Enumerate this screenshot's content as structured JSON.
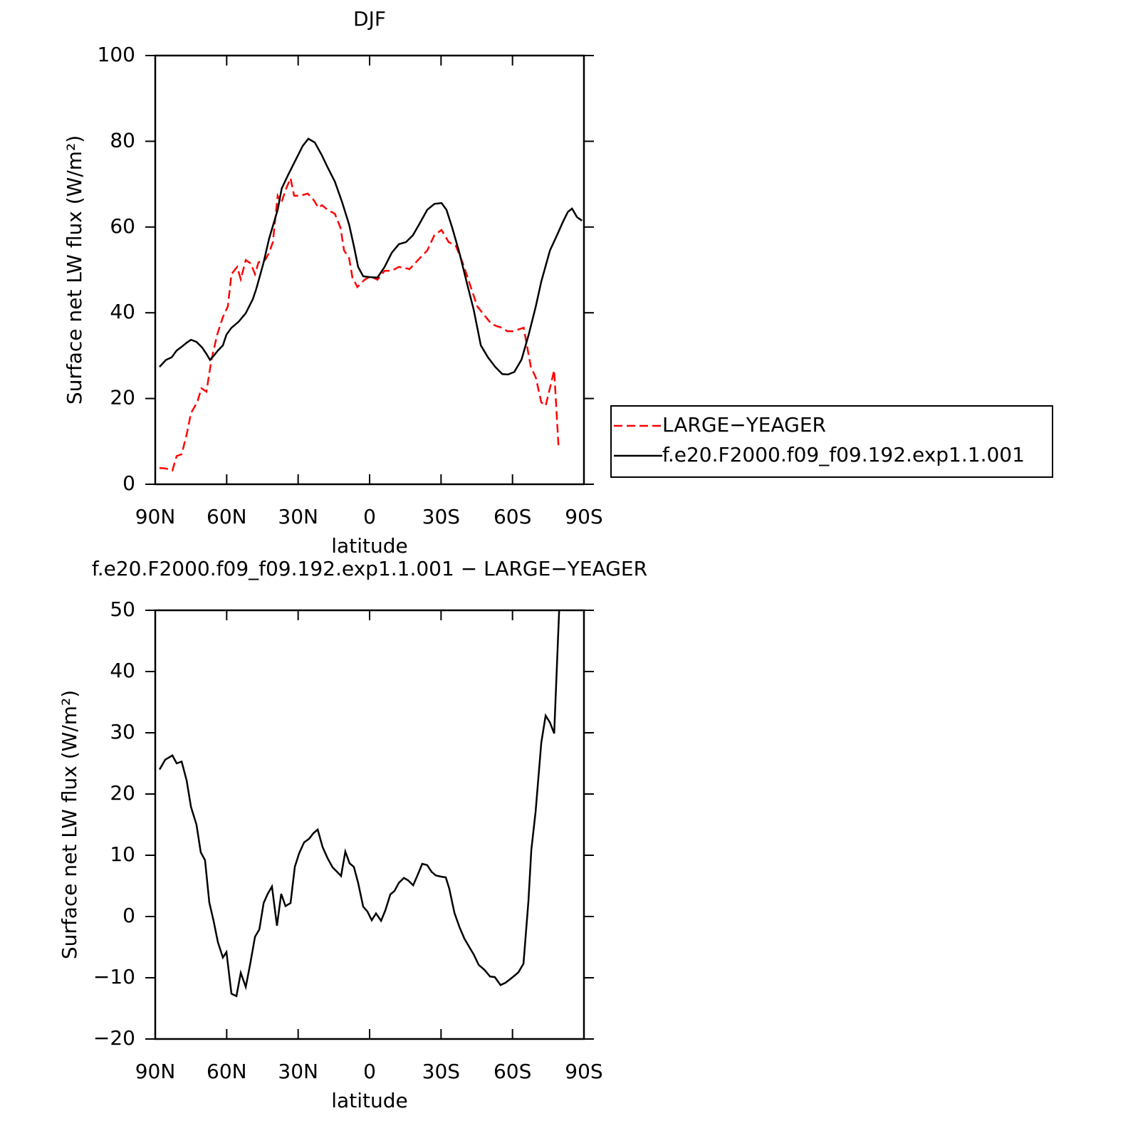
{
  "chart_data": [
    {
      "type": "line",
      "title": "DJF",
      "x_label": "latitude",
      "y_label": "Surface net LW flux (W/m²)",
      "xlim": [
        90,
        -90
      ],
      "xticks": [
        {
          "value": 90,
          "label": "90N"
        },
        {
          "value": 60,
          "label": "60N"
        },
        {
          "value": 30,
          "label": "30N"
        },
        0,
        {
          "value": -30,
          "label": "30S"
        },
        {
          "value": -60,
          "label": "60S"
        },
        {
          "value": -90,
          "label": "90S"
        }
      ],
      "ylim": [
        0,
        100
      ],
      "yticks": [
        0,
        20,
        40,
        60,
        80,
        100
      ],
      "legend": "right",
      "series": [
        {
          "name": "LARGE−YEAGER",
          "color": "#ff0000",
          "line_style": "dashed",
          "x": [
            88.2,
            85.8,
            82.8,
            81,
            78.9,
            76.8,
            75,
            72.4,
            70.6,
            68.5,
            66.4,
            64,
            61.6,
            59.5,
            58,
            55.6,
            54.1,
            52,
            49.9,
            48.1,
            46.6,
            43.9,
            42.2,
            40.6,
            38.6,
            37.1,
            35,
            33.2,
            31.7,
            29,
            26,
            23.6,
            21.5,
            20,
            17.6,
            14.6,
            12.2,
            10.7,
            8.6,
            7.2,
            5.1,
            2.1,
            -0.3,
            -3.3,
            -6.3,
            -9.3,
            -12.3,
            -16.8,
            -21.2,
            -24.2,
            -27.2,
            -30.2,
            -33.2,
            -36.2,
            -39.2,
            -42.2,
            -45.2,
            -48.2,
            -51.2,
            -53.3,
            -55.7,
            -57.8,
            -60.2,
            -64.7,
            -67.7,
            -69.8,
            -72.1,
            -73.9,
            -75.7,
            -77.5,
            -79.3
          ],
          "values": [
            3.8,
            3.7,
            3.2,
            6.6,
            7,
            11.6,
            16.6,
            19.1,
            22.4,
            21.6,
            29,
            34.9,
            39,
            41.5,
            49,
            50.7,
            47.8,
            52.3,
            51.5,
            49,
            51.8,
            52.3,
            54,
            56.5,
            67.3,
            65.6,
            69,
            71.4,
            67.3,
            67.3,
            67.8,
            66.4,
            64.5,
            65.1,
            64,
            63.1,
            59.8,
            54.5,
            52.8,
            48.2,
            46,
            47.7,
            48.5,
            47.7,
            49.8,
            49.8,
            50.7,
            50.2,
            52.8,
            54.5,
            58.1,
            59.3,
            56.5,
            55.6,
            51.5,
            46.5,
            41.5,
            39.4,
            37.4,
            36.9,
            36.5,
            35.7,
            35.7,
            36.5,
            27.4,
            24.9,
            19.1,
            18.3,
            22.4,
            26.6,
            9.1
          ]
        },
        {
          "name": "f.e20.F2000.f09_f09.192.exp1.1.001",
          "color": "#000000",
          "line_style": "solid",
          "x": [
            88.2,
            85.5,
            83.1,
            81,
            78.6,
            76.8,
            75,
            72.7,
            70.3,
            68.5,
            67,
            65.5,
            63.7,
            61.6,
            60.1,
            58,
            55,
            52,
            49,
            47.5,
            44.6,
            42.2,
            38.6,
            36.9,
            34.1,
            31.1,
            28.1,
            25.7,
            23,
            20,
            17.6,
            14.6,
            11.6,
            8.6,
            6.6,
            4.8,
            2.7,
            -0.3,
            -3.3,
            -6.3,
            -9.3,
            -12.3,
            -15.3,
            -18.2,
            -21.2,
            -24.2,
            -27.2,
            -30.2,
            -32.3,
            -34.7,
            -37.7,
            -40.7,
            -43.7,
            -46.7,
            -49.7,
            -52.7,
            -55.7,
            -58.1,
            -60.8,
            -63.8,
            -66.8,
            -69.8,
            -72.1,
            -75.7,
            -78.7,
            -81.1,
            -83.2,
            -85,
            -87.1,
            -89.2
          ],
          "values": [
            27.4,
            29,
            29.6,
            31.2,
            32.2,
            33,
            33.7,
            33.2,
            31.9,
            30.4,
            29,
            29.9,
            31.2,
            32.4,
            34.9,
            36.5,
            37.9,
            39.9,
            43.2,
            45.7,
            51.5,
            57.3,
            64,
            69,
            72.3,
            75.6,
            78.9,
            80.6,
            79.7,
            76.7,
            73.9,
            70.6,
            65.9,
            60.6,
            55.6,
            50.7,
            48.5,
            48.3,
            48.2,
            50.7,
            54,
            56,
            56.5,
            58.1,
            61,
            64,
            65.4,
            65.6,
            64,
            59.8,
            54,
            47.3,
            40.7,
            32.4,
            29.6,
            27.4,
            25.7,
            25.6,
            26.2,
            29.1,
            34.9,
            41.5,
            47.3,
            54.5,
            58.1,
            61.1,
            63.5,
            64.3,
            62.3,
            61.5
          ]
        }
      ]
    },
    {
      "type": "line",
      "title": "f.e20.F2000.f09_f09.192.exp1.1.001 − LARGE−YEAGER",
      "x_label": "latitude",
      "y_label": "Surface net LW flux (W/m²)",
      "xlim": [
        90,
        -90
      ],
      "xticks": [
        {
          "value": 90,
          "label": "90N"
        },
        {
          "value": 60,
          "label": "60N"
        },
        {
          "value": 30,
          "label": "30N"
        },
        0,
        {
          "value": -30,
          "label": "30S"
        },
        {
          "value": -60,
          "label": "60S"
        },
        {
          "value": -90,
          "label": "90S"
        }
      ],
      "ylim": [
        -20,
        50
      ],
      "yticks": [
        {
          "value": -20,
          "label": "−20"
        },
        {
          "value": -10,
          "label": "−10"
        },
        0,
        10,
        20,
        30,
        40,
        50
      ],
      "series": [
        {
          "color": "#000000",
          "line_style": "solid",
          "x": [
            88.2,
            85.8,
            82.8,
            81,
            78.9,
            76.8,
            75,
            72.7,
            70.9,
            69.1,
            67.3,
            65.5,
            63.7,
            61.6,
            60.1,
            58,
            55.9,
            54.1,
            52,
            50.2,
            48.1,
            46.3,
            44.5,
            42.8,
            41,
            38.9,
            37.1,
            35.3,
            33.2,
            31.4,
            29.6,
            27.5,
            25.4,
            23.6,
            21.8,
            19.7,
            17.6,
            15.5,
            13.4,
            12,
            10.2,
            8.4,
            6.6,
            4.8,
            2.7,
            0.9,
            -0.9,
            -2.7,
            -4.8,
            -6.6,
            -8.7,
            -10.5,
            -12.3,
            -14.4,
            -16.2,
            -18.3,
            -20.3,
            -22.1,
            -24.2,
            -26,
            -27.8,
            -30.2,
            -32,
            -33.5,
            -35.6,
            -37.7,
            -39.8,
            -41.9,
            -43.7,
            -45.8,
            -48.2,
            -50.6,
            -52.6,
            -55,
            -57.1,
            -60.1,
            -62.5,
            -64.6,
            -66.7,
            -67.9,
            -69.7,
            -72.1,
            -73.9,
            -75.7,
            -77.5,
            -79.6
          ],
          "values": [
            24,
            25.6,
            26.3,
            25,
            25.3,
            22.2,
            17.9,
            15,
            10.5,
            9.2,
            2.3,
            -0.7,
            -4.2,
            -6.7,
            -5.8,
            -12.6,
            -13,
            -9.2,
            -11.5,
            -7.9,
            -3.3,
            -2.1,
            2.2,
            3.7,
            4.9,
            -1.5,
            3.7,
            1.7,
            2.2,
            8.1,
            10.3,
            12.1,
            12.7,
            13.6,
            14.2,
            11.3,
            9.5,
            8,
            7.2,
            6.6,
            10.6,
            8.7,
            8.1,
            5.5,
            1.6,
            0.8,
            -0.6,
            0.5,
            -0.7,
            1,
            3.6,
            4.2,
            5.5,
            6.3,
            5.9,
            5.1,
            6.9,
            8.6,
            8.4,
            7.3,
            6.7,
            6.5,
            6.4,
            4.5,
            0.6,
            -1.7,
            -3.6,
            -5,
            -6.2,
            -7.9,
            -8.7,
            -9.8,
            -9.9,
            -11.2,
            -10.8,
            -9.9,
            -9.1,
            -7.7,
            2.6,
            10.9,
            17.1,
            28.4,
            32.8,
            31.7,
            29.9,
            50
          ]
        }
      ]
    }
  ]
}
